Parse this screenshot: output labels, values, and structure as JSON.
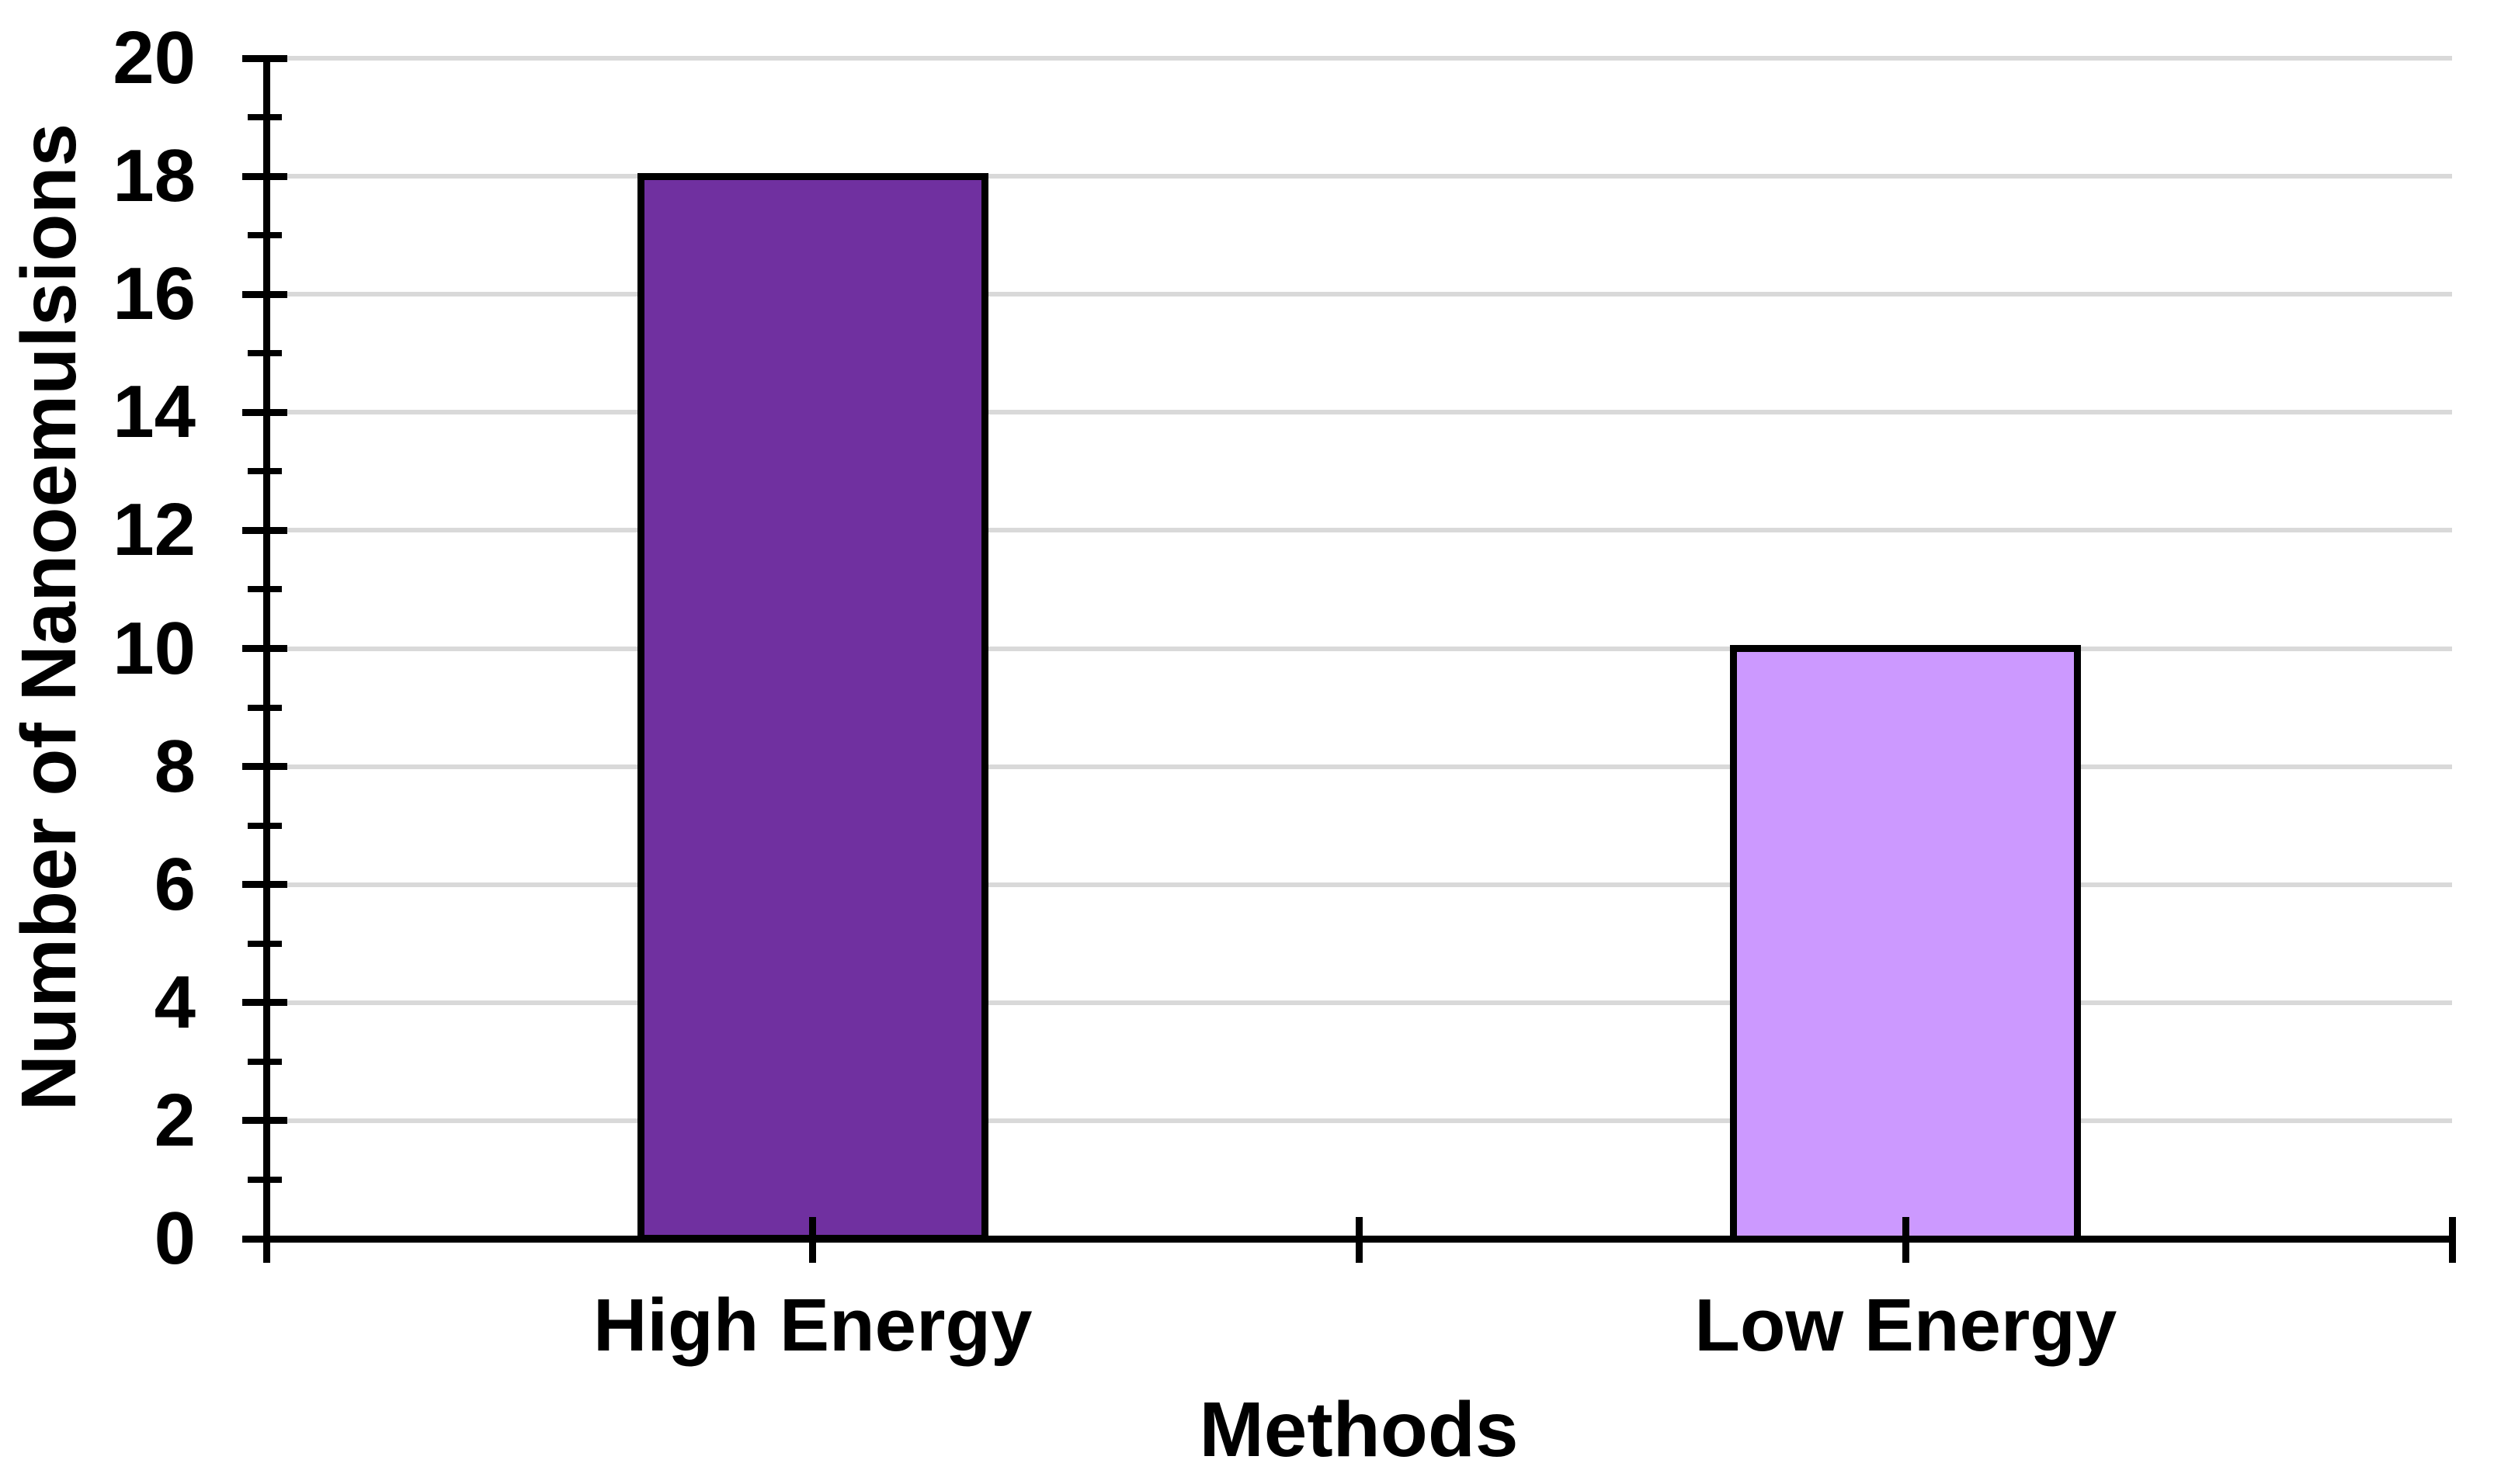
{
  "chart_data": {
    "type": "bar",
    "title": "",
    "xlabel": "Methods",
    "ylabel": "Number of Nanoemulsions",
    "categories": [
      "High Energy",
      "Low Energy"
    ],
    "values": [
      18,
      10
    ],
    "bar_fill_colors": [
      "#7030A0",
      "#CC99FF"
    ],
    "bar_border_color": "#000000",
    "ylim": [
      0,
      20
    ],
    "yticks_major": [
      0,
      2,
      4,
      6,
      8,
      10,
      12,
      14,
      16,
      18,
      20
    ],
    "yticks_minor": [
      1,
      3,
      5,
      7,
      9,
      11,
      13,
      15,
      17,
      19
    ],
    "grid": "horizontal-major",
    "gridline_color": "#D9D9D9",
    "axis_color": "#000000",
    "text_color": "#000000",
    "background_color": "#FFFFFF",
    "legend": "none",
    "tick_style": "cross",
    "xticks_at": "category-boundaries-and-centers"
  }
}
